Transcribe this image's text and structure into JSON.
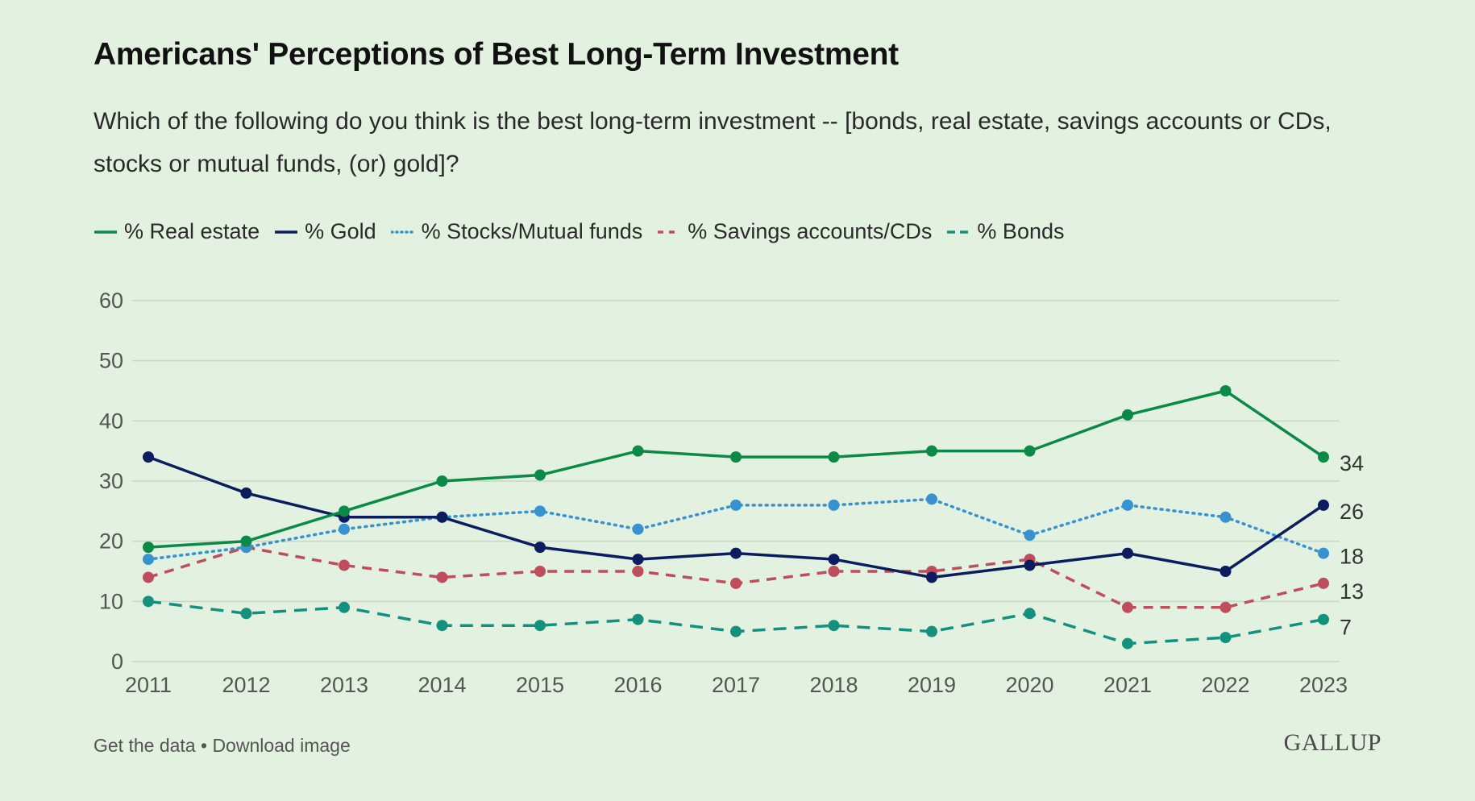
{
  "header": {
    "title": "Americans' Perceptions of Best Long-Term Investment",
    "subtitle": "Which of the following do you think is the best long-term investment -- [bonds, real estate, savings accounts or CDs, stocks or mutual funds, (or) gold]?"
  },
  "footer": {
    "get_data": "Get the data",
    "separator": " • ",
    "download": "Download image",
    "logo": "GALLUP"
  },
  "chart_data": {
    "type": "line",
    "categories": [
      "2011",
      "2012",
      "2013",
      "2014",
      "2015",
      "2016",
      "2017",
      "2018",
      "2019",
      "2020",
      "2021",
      "2022",
      "2023"
    ],
    "ylim": [
      0,
      60
    ],
    "yticks": [
      "0",
      "10",
      "20",
      "30",
      "40",
      "50",
      "60"
    ],
    "grid": "horizontal",
    "legend_position": "top-left",
    "series": [
      {
        "name": "% Real estate",
        "color": "#0B8A47",
        "style": "solid",
        "values": [
          19,
          20,
          25,
          30,
          31,
          35,
          34,
          34,
          35,
          35,
          41,
          45,
          34
        ],
        "end_label": "34"
      },
      {
        "name": "% Gold",
        "color": "#0B1D5E",
        "style": "solid",
        "values": [
          34,
          28,
          24,
          24,
          19,
          17,
          18,
          17,
          14,
          16,
          18,
          15,
          26
        ],
        "end_label": "26"
      },
      {
        "name": "% Stocks/Mutual funds",
        "color": "#3792CF",
        "style": "dotted",
        "values": [
          17,
          19,
          22,
          24,
          25,
          22,
          26,
          26,
          27,
          21,
          26,
          24,
          18
        ],
        "end_label": "18"
      },
      {
        "name": "% Savings accounts/CDs",
        "color": "#BE4E5B",
        "style": "dashed",
        "values": [
          14,
          19,
          16,
          14,
          15,
          15,
          13,
          15,
          15,
          17,
          9,
          9,
          13
        ],
        "end_label": "13"
      },
      {
        "name": "% Bonds",
        "color": "#14907F",
        "style": "longdash",
        "values": [
          10,
          8,
          9,
          6,
          6,
          7,
          5,
          6,
          5,
          8,
          3,
          4,
          7
        ],
        "end_label": "7"
      }
    ]
  }
}
